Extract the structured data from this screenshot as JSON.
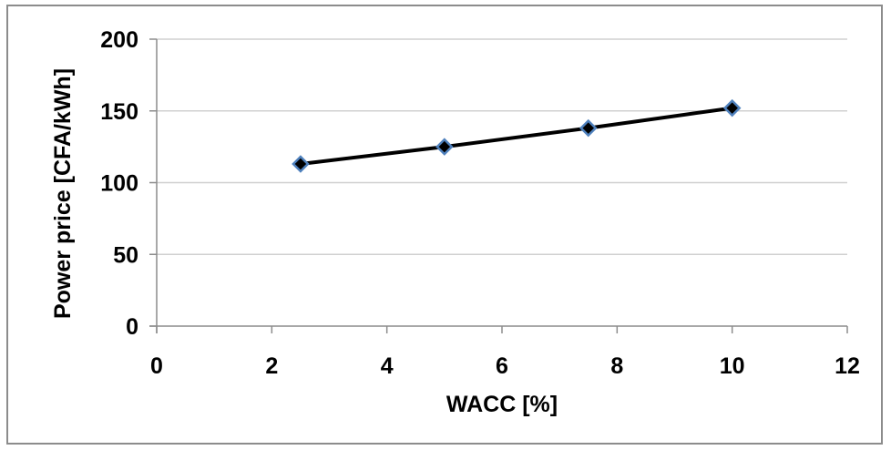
{
  "chart_data": {
    "type": "line",
    "title": "",
    "xlabel": "WACC [%]",
    "ylabel": "Power price [CFA/kWh]",
    "xlim": [
      0,
      12
    ],
    "ylim": [
      0,
      200
    ],
    "x_ticks": [
      0,
      2,
      4,
      6,
      8,
      10,
      12
    ],
    "y_ticks": [
      0,
      50,
      100,
      150,
      200
    ],
    "grid": "horizontal",
    "legend": "none",
    "series": [
      {
        "x": [
          2.5,
          5,
          7.5,
          10
        ],
        "y": [
          113,
          125,
          138,
          152
        ],
        "line_color": "#000000",
        "marker": "diamond",
        "marker_fill": "#000000",
        "marker_edge": "#4f81bd"
      }
    ],
    "colors": {
      "grid": "#d0d0d0",
      "axis": "#8c8c8c"
    }
  }
}
